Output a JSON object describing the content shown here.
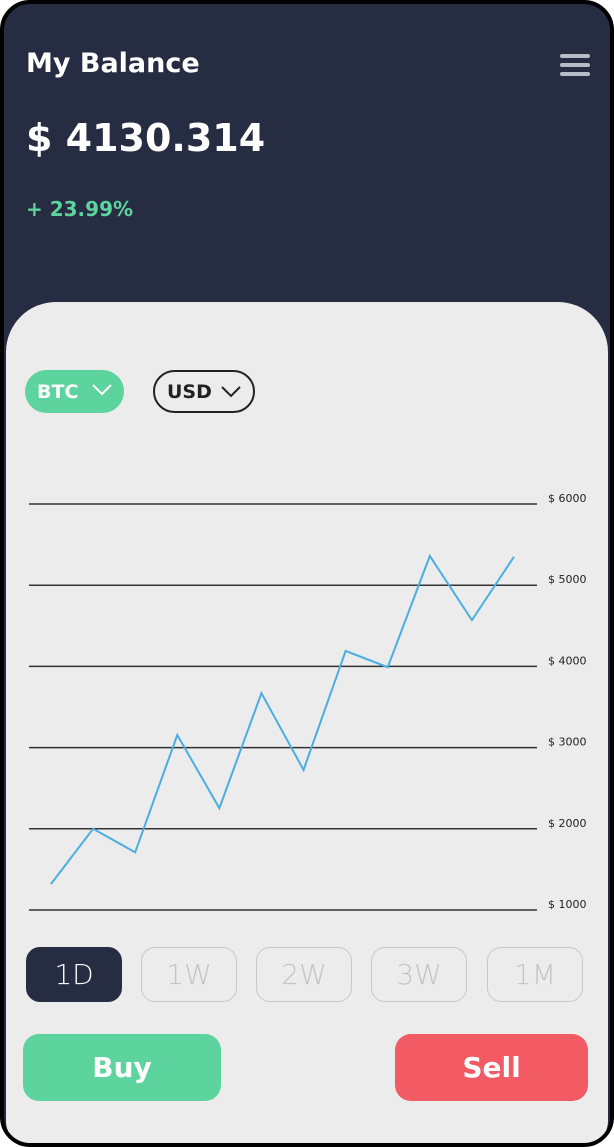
{
  "header": {
    "title": "My Balance",
    "balance": "$ 4130.314",
    "change": "+ 23.99%"
  },
  "selectors": [
    "BTC",
    "USD"
  ],
  "chart_data": {
    "type": "line",
    "series": [
      {
        "color": "#4aaee0",
        "values": [
          1320,
          2000,
          1710,
          3155,
          2255,
          3670,
          2725,
          4190,
          3990,
          5360,
          4570,
          5350
        ]
      }
    ],
    "ylim": [
      1000,
      6000
    ],
    "yticks": [
      {
        "value": 1000,
        "label": "$ 1000"
      },
      {
        "value": 2000,
        "label": "$ 2000"
      },
      {
        "value": 3000,
        "label": "$ 3000"
      },
      {
        "value": 4000,
        "label": "$ 4000"
      },
      {
        "value": 5000,
        "label": "$ 5000"
      },
      {
        "value": 6000,
        "label": "$ 6000"
      }
    ],
    "grid": true
  },
  "ranges": [
    "1D",
    "1W",
    "2W",
    "3W",
    "1M"
  ],
  "actions": [
    "Buy",
    "Sell"
  ]
}
